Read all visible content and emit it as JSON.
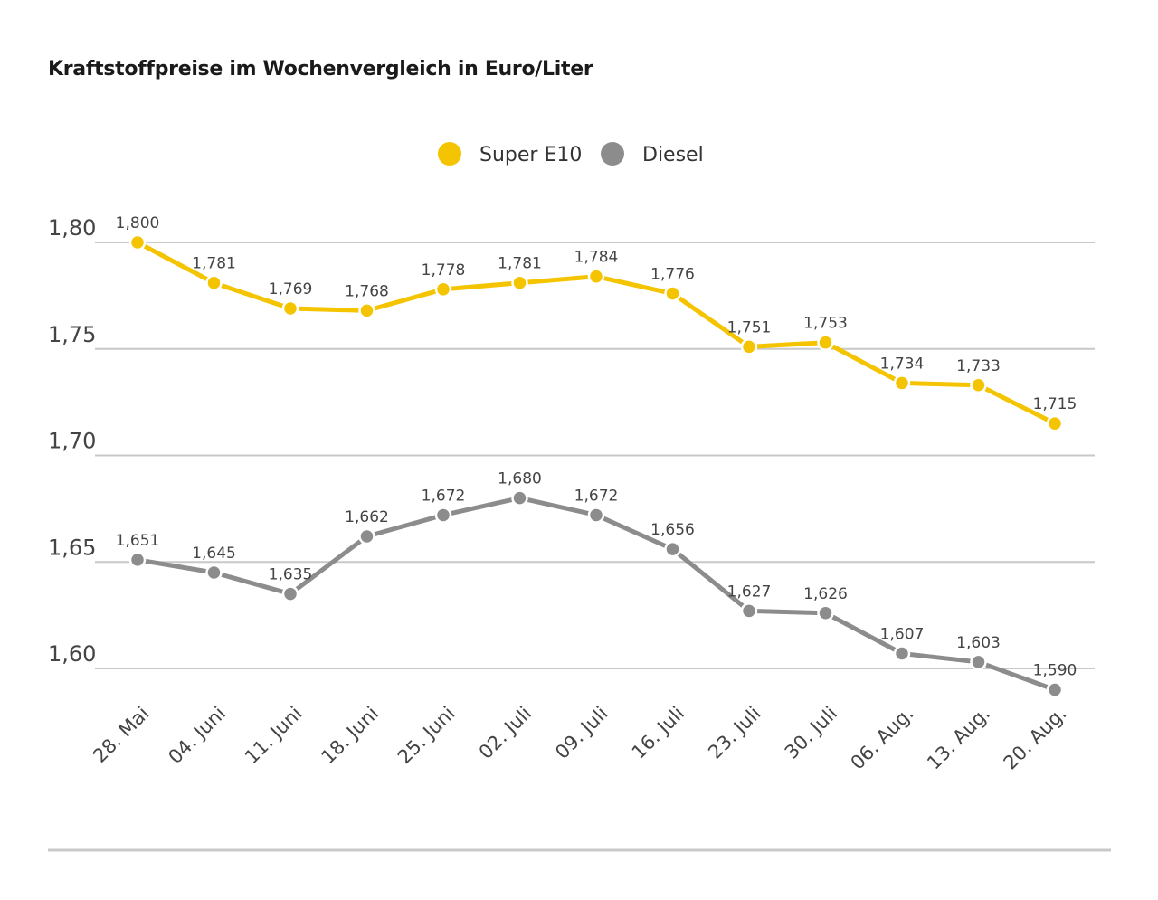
{
  "chart_data": {
    "type": "line",
    "title": "Kraftstoffpreise im Wochenvergleich in Euro/Liter",
    "categories": [
      "28. Mai",
      "04. Juni",
      "11. Juni",
      "18. Juni",
      "25. Juni",
      "02. Juli",
      "09. Juli",
      "16. Juli",
      "23. Juli",
      "30. Juli",
      "06. Aug.",
      "13. Aug.",
      "20. Aug."
    ],
    "series": [
      {
        "name": "Super E10",
        "color": "#f5c400",
        "values": [
          1.8,
          1.781,
          1.769,
          1.768,
          1.778,
          1.781,
          1.784,
          1.776,
          1.751,
          1.753,
          1.734,
          1.733,
          1.715
        ],
        "labels": [
          "1,800",
          "1,781",
          "1,769",
          "1,768",
          "1,778",
          "1,781",
          "1,784",
          "1,776",
          "1,751",
          "1,753",
          "1,734",
          "1,733",
          "1,715"
        ]
      },
      {
        "name": "Diesel",
        "color": "#8c8c8c",
        "values": [
          1.651,
          1.645,
          1.635,
          1.662,
          1.672,
          1.68,
          1.672,
          1.656,
          1.627,
          1.626,
          1.607,
          1.603,
          1.59
        ],
        "labels": [
          "1,651",
          "1,645",
          "1,635",
          "1,662",
          "1,672",
          "1,680",
          "1,672",
          "1,656",
          "1,627",
          "1,626",
          "1,607",
          "1,603",
          "1,590"
        ]
      }
    ],
    "yticks": [
      1.8,
      1.75,
      1.7,
      1.65,
      1.6
    ],
    "ytick_labels": [
      "1,80",
      "1,75",
      "1,70",
      "1,65",
      "1,60"
    ],
    "grid": true,
    "legend": "top-center"
  }
}
